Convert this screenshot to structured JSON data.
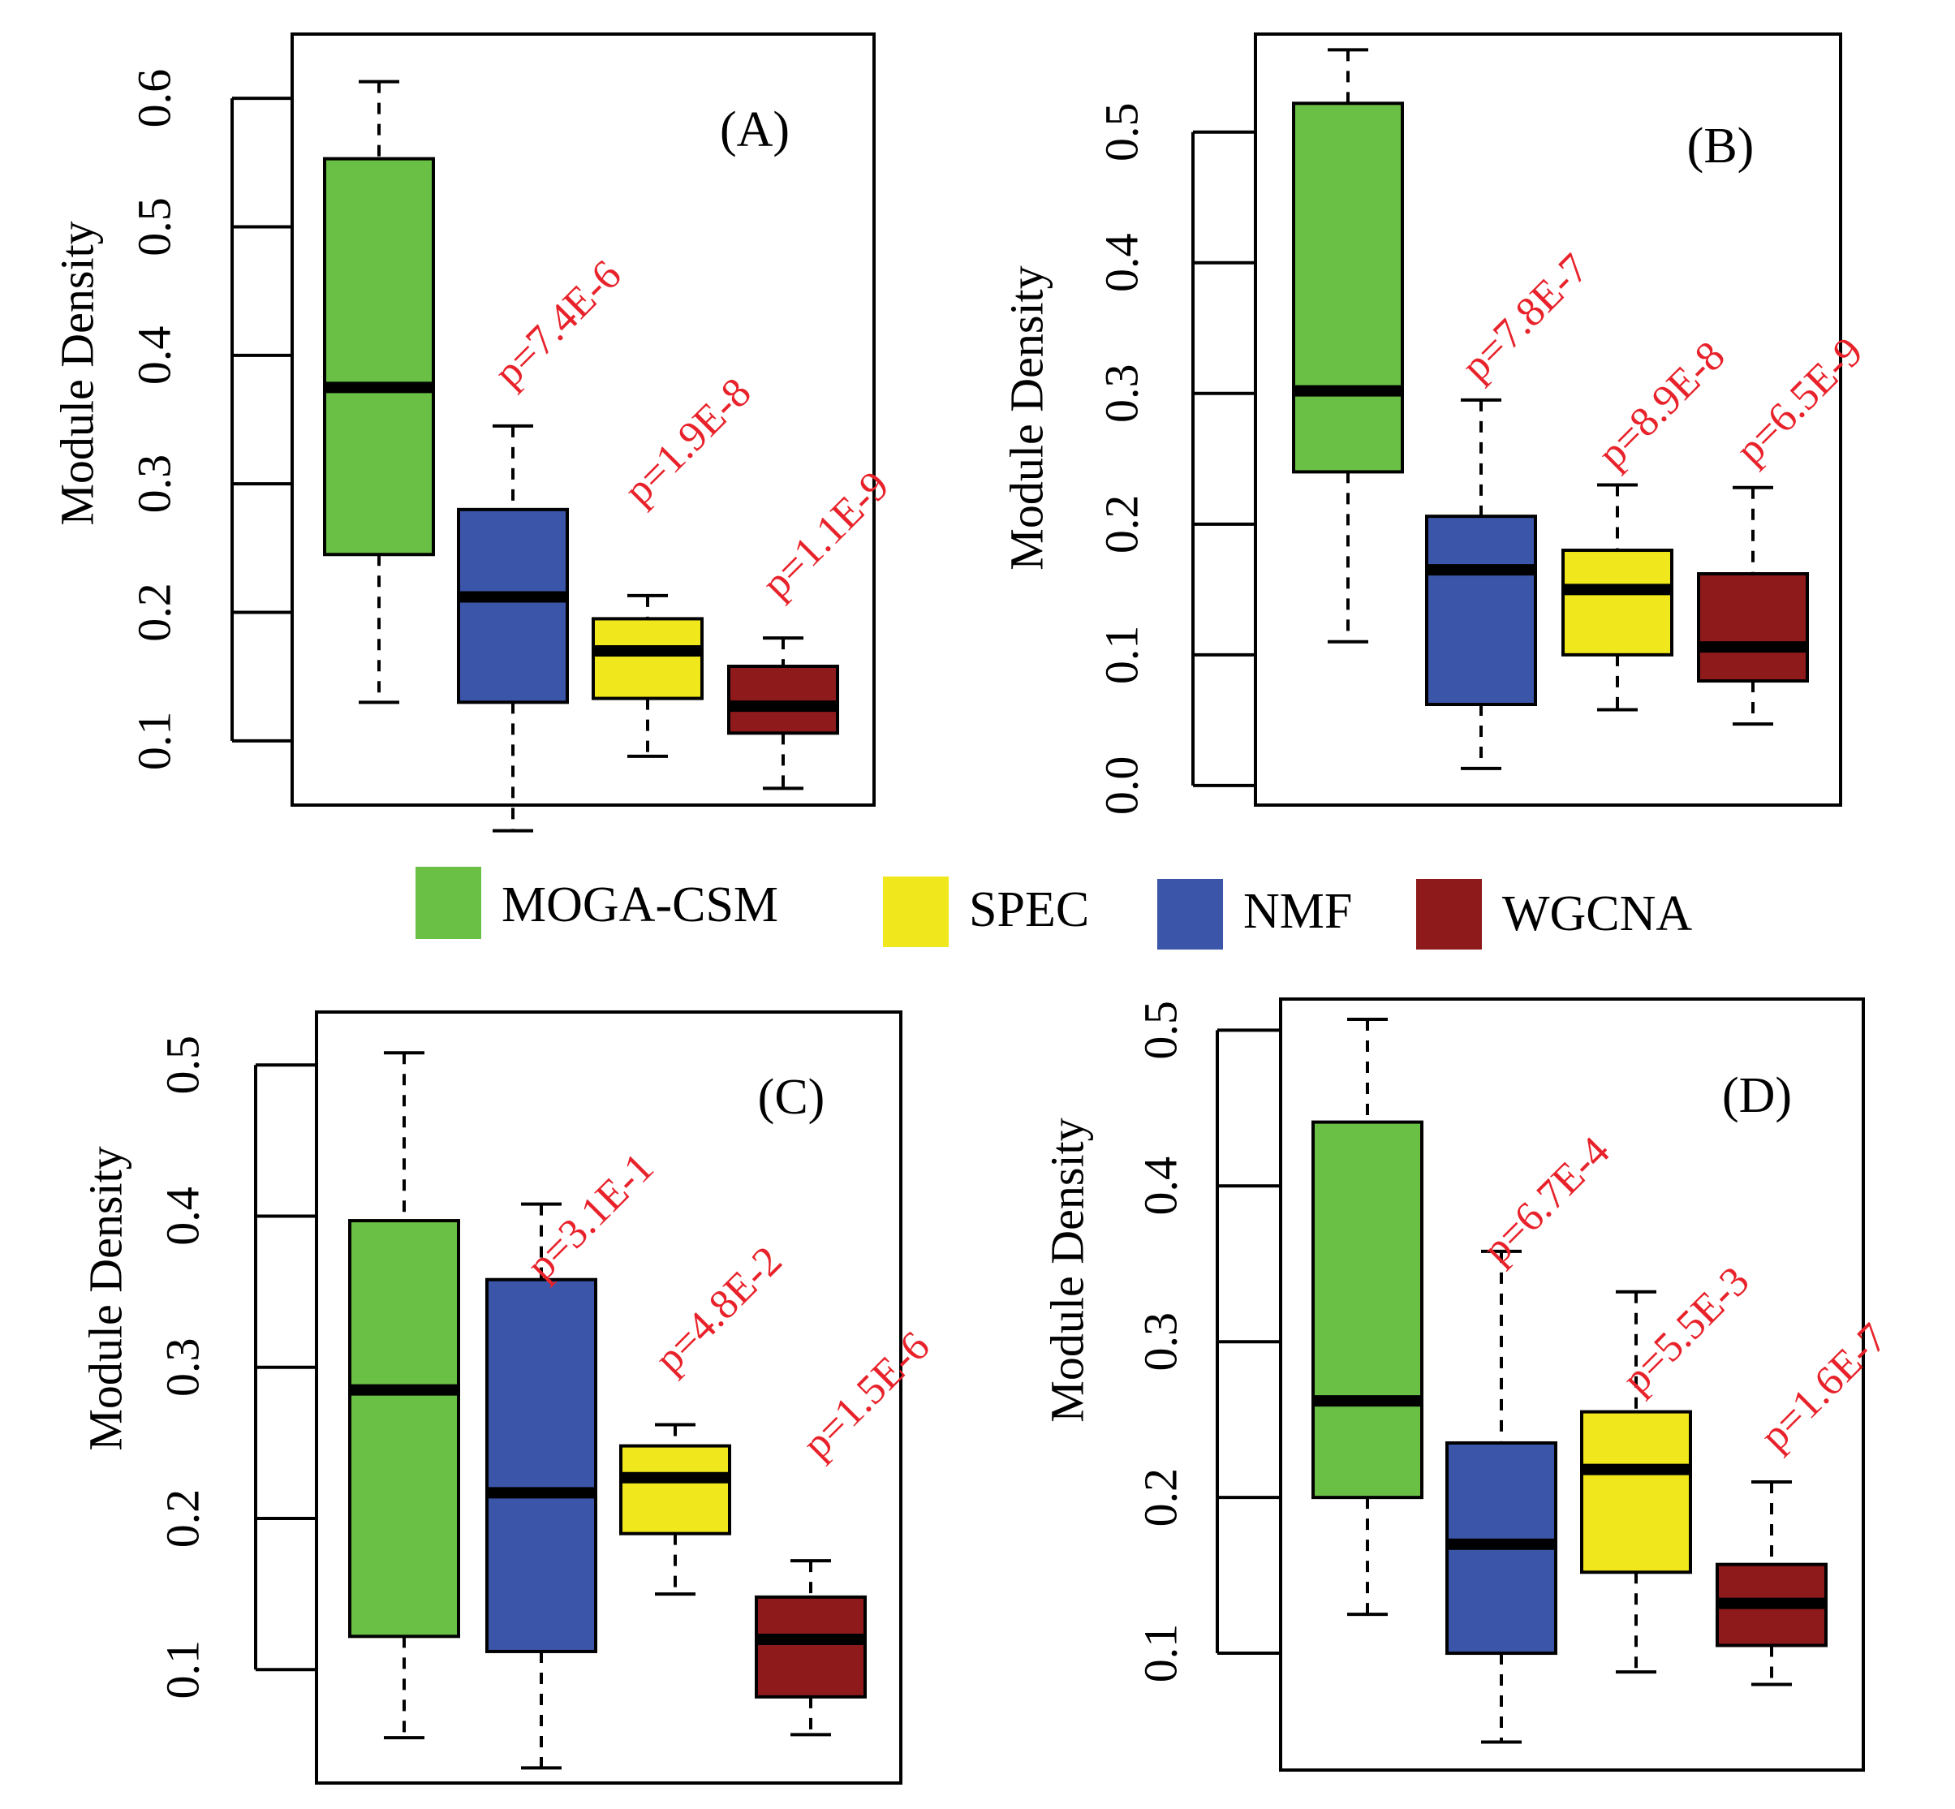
{
  "colors": {
    "MOGA-CSM": "#6abf45",
    "SPEC": "#f0e81c",
    "NMF": "#3b55a8",
    "WGCNA": "#8e1a1c",
    "pvalue_text": "#e8222a"
  },
  "legend": {
    "entries": [
      {
        "label": "MOGA-CSM",
        "color_key": "MOGA-CSM"
      },
      {
        "label": "SPEC",
        "color_key": "SPEC"
      },
      {
        "label": "NMF",
        "color_key": "NMF"
      },
      {
        "label": "WGCNA",
        "color_key": "WGCNA"
      }
    ]
  },
  "chart_data": [
    {
      "type": "boxplot",
      "label": "(A)",
      "ylabel": "Module Density",
      "ylim": [
        0.05,
        0.65
      ],
      "yticks": [
        0.1,
        0.2,
        0.3,
        0.4,
        0.5,
        0.6
      ],
      "ytick_labels": [
        "0.1",
        "0.2",
        "0.3",
        "0.4",
        "0.5",
        "0.6"
      ],
      "series": [
        {
          "name": "MOGA-CSM",
          "min": 0.13,
          "q1": 0.245,
          "median": 0.375,
          "q3": 0.553,
          "max": 0.613
        },
        {
          "name": "NMF",
          "min": 0.03,
          "q1": 0.13,
          "median": 0.212,
          "q3": 0.28,
          "max": 0.345,
          "pvalue": "p=7.4E-6"
        },
        {
          "name": "SPEC",
          "min": 0.088,
          "q1": 0.133,
          "median": 0.17,
          "q3": 0.195,
          "max": 0.213,
          "pvalue": "p=1.9E-8"
        },
        {
          "name": "WGCNA",
          "min": 0.063,
          "q1": 0.106,
          "median": 0.127,
          "q3": 0.158,
          "max": 0.18,
          "pvalue": "p=1.1E-9"
        }
      ]
    },
    {
      "type": "boxplot",
      "label": "(B)",
      "ylabel": "Module Density",
      "ylim": [
        -0.015,
        0.575
      ],
      "yticks": [
        0.0,
        0.1,
        0.2,
        0.3,
        0.4,
        0.5
      ],
      "ytick_labels": [
        "0.0",
        "0.1",
        "0.2",
        "0.3",
        "0.4",
        "0.5"
      ],
      "series": [
        {
          "name": "MOGA-CSM",
          "min": 0.11,
          "q1": 0.24,
          "median": 0.302,
          "q3": 0.522,
          "max": 0.563
        },
        {
          "name": "NMF",
          "min": 0.013,
          "q1": 0.062,
          "median": 0.165,
          "q3": 0.206,
          "max": 0.295,
          "pvalue": "p=7.8E-7"
        },
        {
          "name": "SPEC",
          "min": 0.058,
          "q1": 0.1,
          "median": 0.15,
          "q3": 0.18,
          "max": 0.23,
          "pvalue": "p=8.9E-8"
        },
        {
          "name": "WGCNA",
          "min": 0.047,
          "q1": 0.08,
          "median": 0.106,
          "q3": 0.162,
          "max": 0.228,
          "pvalue": "p=6.5E-9"
        }
      ]
    },
    {
      "type": "boxplot",
      "label": "(C)",
      "ylabel": "Module Density",
      "ylim": [
        0.025,
        0.535
      ],
      "yticks": [
        0.1,
        0.2,
        0.3,
        0.4,
        0.5
      ],
      "ytick_labels": [
        "0.1",
        "0.2",
        "0.3",
        "0.4",
        "0.5"
      ],
      "series": [
        {
          "name": "MOGA-CSM",
          "min": 0.055,
          "q1": 0.122,
          "median": 0.285,
          "q3": 0.397,
          "max": 0.508
        },
        {
          "name": "NMF",
          "min": 0.035,
          "q1": 0.112,
          "median": 0.217,
          "q3": 0.358,
          "max": 0.408,
          "pvalue": "p=3.1E-1"
        },
        {
          "name": "SPEC",
          "min": 0.15,
          "q1": 0.19,
          "median": 0.227,
          "q3": 0.248,
          "max": 0.262,
          "pvalue": "p=4.8E-2"
        },
        {
          "name": "WGCNA",
          "min": 0.057,
          "q1": 0.082,
          "median": 0.12,
          "q3": 0.148,
          "max": 0.172,
          "pvalue": "p=1.5E-6"
        }
      ]
    },
    {
      "type": "boxplot",
      "label": "(D)",
      "ylabel": "Module Density",
      "ylim": [
        0.025,
        0.52
      ],
      "yticks": [
        0.1,
        0.2,
        0.3,
        0.4,
        0.5
      ],
      "ytick_labels": [
        "0.1",
        "0.2",
        "0.3",
        "0.4",
        "0.5"
      ],
      "series": [
        {
          "name": "MOGA-CSM",
          "min": 0.125,
          "q1": 0.2,
          "median": 0.262,
          "q3": 0.441,
          "max": 0.507
        },
        {
          "name": "NMF",
          "min": 0.043,
          "q1": 0.1,
          "median": 0.17,
          "q3": 0.235,
          "max": 0.358,
          "pvalue": "p=6.7E-4"
        },
        {
          "name": "SPEC",
          "min": 0.088,
          "q1": 0.152,
          "median": 0.218,
          "q3": 0.255,
          "max": 0.332,
          "pvalue": "p=5.5E-3"
        },
        {
          "name": "WGCNA",
          "min": 0.08,
          "q1": 0.105,
          "median": 0.132,
          "q3": 0.157,
          "max": 0.21,
          "pvalue": "p=1.6E-7"
        }
      ]
    }
  ]
}
